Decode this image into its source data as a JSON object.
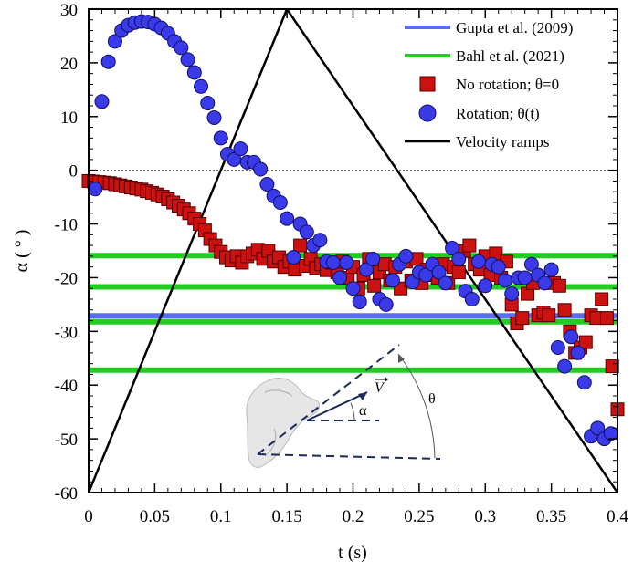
{
  "chart_data": {
    "type": "scatter",
    "xlabel": "t (s)",
    "ylabel": "α ( ° )",
    "xlim": [
      0,
      0.4
    ],
    "ylim": [
      -60,
      30
    ],
    "x_ticks": [
      0,
      0.05,
      0.1,
      0.15,
      0.2,
      0.25,
      0.3,
      0.35,
      0.4
    ],
    "x_tick_labels": [
      "0",
      "0.05",
      "0.1",
      "0.15",
      "0.2",
      "0.25",
      "0.3",
      "0.35",
      "0.4"
    ],
    "y_ticks": [
      30,
      20,
      10,
      0,
      -10,
      -20,
      -30,
      -40,
      -50,
      -60
    ],
    "y_tick_labels": [
      "30",
      "20",
      "10",
      "0",
      "-10",
      "-20",
      "-30",
      "-40",
      "-50",
      "-60"
    ],
    "zero_line": 0,
    "legend_position": "top-right",
    "series": [
      {
        "name": "Gupta et al. (2009)",
        "kind": "hline",
        "color": "#5a6cf0",
        "values": [
          -27.1
        ]
      },
      {
        "name": "Bahl et al. (2021)",
        "kind": "hline",
        "color": "#22cc22",
        "values": [
          -15.9,
          -21.7,
          -28.2,
          -37.2
        ]
      },
      {
        "name": "No rotation; θ=0",
        "kind": "square",
        "color": "#cc1111",
        "x": [
          0.0,
          0.004,
          0.008,
          0.012,
          0.016,
          0.02,
          0.024,
          0.028,
          0.032,
          0.036,
          0.04,
          0.044,
          0.048,
          0.052,
          0.056,
          0.06,
          0.064,
          0.068,
          0.072,
          0.076,
          0.08,
          0.084,
          0.088,
          0.092,
          0.096,
          0.1,
          0.104,
          0.108,
          0.112,
          0.116,
          0.12,
          0.124,
          0.128,
          0.132,
          0.136,
          0.14,
          0.144,
          0.148,
          0.152,
          0.156,
          0.16,
          0.164,
          0.168,
          0.172,
          0.176,
          0.18,
          0.184,
          0.188,
          0.192,
          0.196,
          0.2,
          0.204,
          0.208,
          0.212,
          0.216,
          0.22,
          0.224,
          0.228,
          0.232,
          0.236,
          0.24,
          0.244,
          0.248,
          0.252,
          0.256,
          0.26,
          0.264,
          0.268,
          0.272,
          0.276,
          0.28,
          0.284,
          0.288,
          0.292,
          0.296,
          0.3,
          0.304,
          0.308,
          0.312,
          0.316,
          0.32,
          0.324,
          0.328,
          0.332,
          0.336,
          0.34,
          0.344,
          0.348,
          0.352,
          0.356,
          0.36,
          0.364,
          0.368,
          0.372,
          0.376,
          0.38,
          0.384,
          0.388,
          0.392,
          0.396,
          0.4
        ],
        "y": [
          -2.0,
          -2.1,
          -2.2,
          -2.3,
          -2.4,
          -2.6,
          -2.8,
          -3.0,
          -3.2,
          -3.4,
          -3.6,
          -3.9,
          -4.2,
          -4.5,
          -4.9,
          -5.4,
          -6.0,
          -6.6,
          -7.3,
          -8.0,
          -9.0,
          -10.0,
          -11.2,
          -12.8,
          -14.0,
          -15.2,
          -16.2,
          -16.8,
          -16.0,
          -17.2,
          -16.0,
          -15.5,
          -14.8,
          -16.5,
          -15.0,
          -17.0,
          -16.2,
          -18.0,
          -17.0,
          -18.5,
          -14.0,
          -17.8,
          -16.5,
          -18.2,
          -17.5,
          -18.6,
          -17.2,
          -19.0,
          -17.0,
          -20.0,
          -18.0,
          -22.0,
          -19.5,
          -16.5,
          -21.5,
          -19.0,
          -17.5,
          -20.5,
          -18.0,
          -22.0,
          -17.0,
          -20.5,
          -16.5,
          -21.0,
          -18.5,
          -19.5,
          -20.0,
          -17.5,
          -21.0,
          -18.0,
          -19.0,
          -15.0,
          -14.0,
          -17.5,
          -18.5,
          -16.0,
          -19.5,
          -15.5,
          -20.0,
          -17.0,
          -25.0,
          -28.5,
          -27.5,
          -23.0,
          -21.0,
          -27.0,
          -26.5,
          -27.0,
          -21.0,
          -21.5,
          -26.0,
          -30.0,
          -34.0,
          -33.0,
          -32.0,
          -27.0,
          -27.5,
          -24.0,
          -27.5,
          -36.5,
          -44.5
        ],
        "display_x": [
          0,
          0.005,
          0.01,
          0.015,
          0.02,
          0.025,
          0.03,
          0.035,
          0.04,
          0.045,
          0.05,
          0.055,
          0.06,
          0.065,
          0.07,
          0.075,
          0.08,
          0.085,
          0.09,
          0.095,
          0.1,
          0.105,
          0.11,
          0.115,
          0.12,
          0.125,
          0.13,
          0.135,
          0.14,
          0.145,
          0.15,
          0.155,
          0.16,
          0.165,
          0.17,
          0.175,
          0.18,
          0.185,
          0.19,
          0.195,
          0.2,
          0.205,
          0.21,
          0.215,
          0.22,
          0.225,
          0.23,
          0.235,
          0.24,
          0.245,
          0.25,
          0.255,
          0.26,
          0.265,
          0.27,
          0.275,
          0.28,
          0.285,
          0.29,
          0.295,
          0.3,
          0.305,
          0.31,
          0.315,
          0.32,
          0.325,
          0.33,
          0.335,
          0.34,
          0.345,
          0.35,
          0.355,
          0.36,
          0.365,
          0.37,
          0.375,
          0.38,
          0.385,
          0.39,
          0.395,
          0.4
        ]
      },
      {
        "name": "Rotation; θ(t)",
        "kind": "circle",
        "color": "#3a3ae8",
        "x": [
          0.005,
          0.01,
          0.015,
          0.02,
          0.025,
          0.03,
          0.035,
          0.04,
          0.045,
          0.05,
          0.055,
          0.06,
          0.065,
          0.07,
          0.075,
          0.08,
          0.085,
          0.09,
          0.095,
          0.1,
          0.105,
          0.11,
          0.115,
          0.12,
          0.125,
          0.13,
          0.135,
          0.14,
          0.145,
          0.15,
          0.155,
          0.16,
          0.165,
          0.17,
          0.175,
          0.18,
          0.185,
          0.19,
          0.195,
          0.2,
          0.205,
          0.21,
          0.215,
          0.22,
          0.225,
          0.23,
          0.235,
          0.24,
          0.245,
          0.25,
          0.255,
          0.26,
          0.265,
          0.27,
          0.275,
          0.28,
          0.285,
          0.29,
          0.295,
          0.3,
          0.305,
          0.31,
          0.315,
          0.32,
          0.325,
          0.33,
          0.335,
          0.34,
          0.345,
          0.35,
          0.355,
          0.36,
          0.365,
          0.37,
          0.375,
          0.38,
          0.385,
          0.39,
          0.395
        ],
        "y": [
          -3.5,
          12.8,
          20.2,
          24.0,
          26.0,
          27.0,
          27.5,
          27.7,
          27.6,
          27.2,
          26.5,
          25.5,
          24.0,
          22.8,
          20.6,
          18.2,
          15.6,
          12.5,
          9.8,
          6.0,
          3.0,
          2.0,
          4.0,
          1.5,
          1.5,
          0.2,
          -2.6,
          -4.8,
          -6.0,
          -9.0,
          -16.2,
          -10.0,
          -11.5,
          -14.0,
          -13.0,
          -17.0,
          -17.2,
          -20.0,
          -17.2,
          -22.0,
          -24.5,
          -18.5,
          -16.5,
          -24.0,
          -25.0,
          -20.5,
          -17.5,
          -16.0,
          -20.8,
          -19.0,
          -19.5,
          -17.5,
          -19.0,
          -21.0,
          -14.5,
          -16.5,
          -22.5,
          -24.0,
          -17.0,
          -21.5,
          -17.5,
          -18.0,
          -20.5,
          -23.0,
          -20.0,
          -20.0,
          -17.5,
          -19.5,
          -21.0,
          -18.5,
          -33.0,
          -36.5,
          -31.0,
          -34.0,
          -39.5,
          -49.5,
          -48.0,
          -50.0,
          -49.0
        ]
      },
      {
        "name": "Velocity ramps",
        "kind": "line",
        "color": "#000000",
        "x": [
          0,
          0.15,
          0.4
        ],
        "y": [
          -60,
          30,
          -60
        ]
      }
    ],
    "annotations": [
      "α",
      "θ",
      "V"
    ]
  }
}
